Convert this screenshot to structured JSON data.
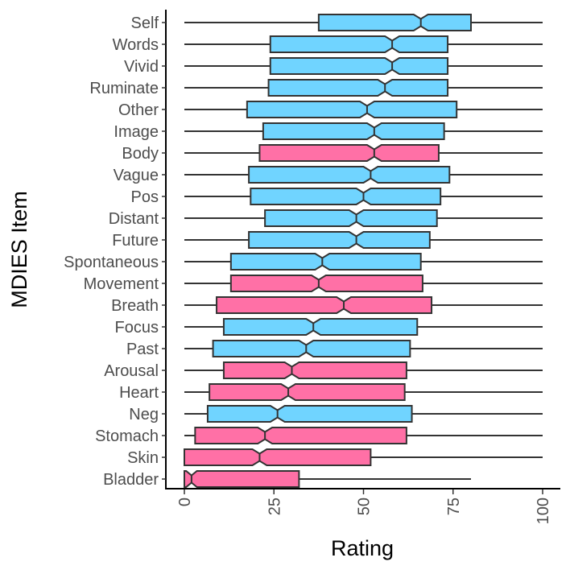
{
  "chart_data": {
    "type": "boxplot",
    "orientation": "horizontal",
    "notched": true,
    "xlabel": "Rating",
    "ylabel": "MDIES Item",
    "xlim": [
      -3,
      103
    ],
    "x_ticks": [
      0,
      25,
      50,
      75,
      100
    ],
    "grid": false,
    "legend": "none",
    "colors": {
      "blue": "#70D4FF",
      "pink": "#FF70A6",
      "outline": "#333333"
    },
    "items": [
      {
        "name": "Self",
        "color": "blue",
        "whisker_low": 0,
        "q1": 37.5,
        "median": 66,
        "q3": 80,
        "whisker_high": 100,
        "notch_low": 64,
        "notch_high": 68
      },
      {
        "name": "Words",
        "color": "blue",
        "whisker_low": 0,
        "q1": 24,
        "median": 58,
        "q3": 73.5,
        "whisker_high": 100,
        "notch_low": 56,
        "notch_high": 60
      },
      {
        "name": "Vivid",
        "color": "blue",
        "whisker_low": 0,
        "q1": 24,
        "median": 58,
        "q3": 73.5,
        "whisker_high": 100,
        "notch_low": 56,
        "notch_high": 60
      },
      {
        "name": "Ruminate",
        "color": "blue",
        "whisker_low": 0,
        "q1": 23.5,
        "median": 56,
        "q3": 73.5,
        "whisker_high": 100,
        "notch_low": 54,
        "notch_high": 58
      },
      {
        "name": "Other",
        "color": "blue",
        "whisker_low": 0,
        "q1": 17.5,
        "median": 51,
        "q3": 76,
        "whisker_high": 100,
        "notch_low": 49,
        "notch_high": 53
      },
      {
        "name": "Image",
        "color": "blue",
        "whisker_low": 0,
        "q1": 22,
        "median": 53,
        "q3": 72.5,
        "whisker_high": 100,
        "notch_low": 51,
        "notch_high": 55
      },
      {
        "name": "Body",
        "color": "pink",
        "whisker_low": 0,
        "q1": 21,
        "median": 53,
        "q3": 71,
        "whisker_high": 100,
        "notch_low": 51,
        "notch_high": 55
      },
      {
        "name": "Vague",
        "color": "blue",
        "whisker_low": 0,
        "q1": 18,
        "median": 52,
        "q3": 74,
        "whisker_high": 100,
        "notch_low": 50,
        "notch_high": 54
      },
      {
        "name": "Pos",
        "color": "blue",
        "whisker_low": 0,
        "q1": 18.5,
        "median": 50,
        "q3": 71.5,
        "whisker_high": 100,
        "notch_low": 48,
        "notch_high": 52
      },
      {
        "name": "Distant",
        "color": "blue",
        "whisker_low": 0,
        "q1": 22.5,
        "median": 48,
        "q3": 70.5,
        "whisker_high": 100,
        "notch_low": 46,
        "notch_high": 50
      },
      {
        "name": "Future",
        "color": "blue",
        "whisker_low": 0,
        "q1": 18,
        "median": 48,
        "q3": 68.5,
        "whisker_high": 100,
        "notch_low": 46,
        "notch_high": 50
      },
      {
        "name": "Spontaneous",
        "color": "blue",
        "whisker_low": 0,
        "q1": 13,
        "median": 38.5,
        "q3": 66,
        "whisker_high": 100,
        "notch_low": 36.5,
        "notch_high": 40.5
      },
      {
        "name": "Movement",
        "color": "pink",
        "whisker_low": 0,
        "q1": 13,
        "median": 37.5,
        "q3": 66.5,
        "whisker_high": 100,
        "notch_low": 35.5,
        "notch_high": 39.5
      },
      {
        "name": "Breath",
        "color": "pink",
        "whisker_low": 0,
        "q1": 9,
        "median": 44.5,
        "q3": 69,
        "whisker_high": 100,
        "notch_low": 42.5,
        "notch_high": 46.5
      },
      {
        "name": "Focus",
        "color": "blue",
        "whisker_low": 0,
        "q1": 11,
        "median": 36,
        "q3": 65,
        "whisker_high": 100,
        "notch_low": 34,
        "notch_high": 38
      },
      {
        "name": "Past",
        "color": "blue",
        "whisker_low": 0,
        "q1": 8,
        "median": 34,
        "q3": 63,
        "whisker_high": 100,
        "notch_low": 32,
        "notch_high": 36
      },
      {
        "name": "Arousal",
        "color": "pink",
        "whisker_low": 0,
        "q1": 11,
        "median": 30,
        "q3": 62,
        "whisker_high": 100,
        "notch_low": 28,
        "notch_high": 32
      },
      {
        "name": "Heart",
        "color": "pink",
        "whisker_low": 0,
        "q1": 7,
        "median": 29,
        "q3": 61.5,
        "whisker_high": 100,
        "notch_low": 27,
        "notch_high": 31
      },
      {
        "name": "Neg",
        "color": "blue",
        "whisker_low": 0,
        "q1": 6.5,
        "median": 26,
        "q3": 63.5,
        "whisker_high": 100,
        "notch_low": 24,
        "notch_high": 28
      },
      {
        "name": "Stomach",
        "color": "pink",
        "whisker_low": 0,
        "q1": 3,
        "median": 22.5,
        "q3": 62,
        "whisker_high": 100,
        "notch_low": 20.5,
        "notch_high": 24.5
      },
      {
        "name": "Skin",
        "color": "pink",
        "whisker_low": 0,
        "q1": 0,
        "median": 21,
        "q3": 52,
        "whisker_high": 100,
        "notch_low": 19,
        "notch_high": 23
      },
      {
        "name": "Bladder",
        "color": "pink",
        "whisker_low": 0,
        "q1": 0,
        "median": 2,
        "q3": 32,
        "whisker_high": 80,
        "notch_low": 0.5,
        "notch_high": 3.5
      }
    ]
  }
}
